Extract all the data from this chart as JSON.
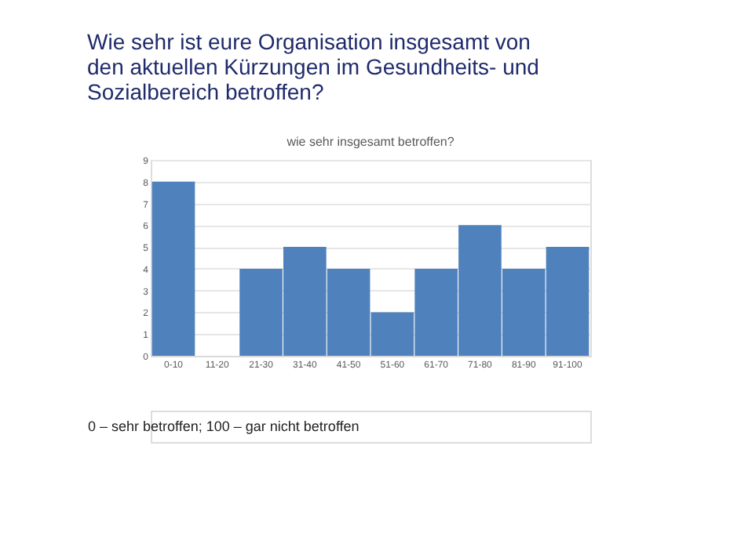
{
  "chart_data": {
    "type": "bar",
    "title": "Wie sehr ist eure Organisation insgesamt von den aktuellen Kürzungen im Gesundheits- und Sozialbereich betroffen?",
    "subtitle": "wie sehr insgesamt betroffen?",
    "categories": [
      "0-10",
      "11-20",
      "21-30",
      "31-40",
      "41-50",
      "51-60",
      "61-70",
      "71-80",
      "81-90",
      "91-100"
    ],
    "values": [
      8,
      0,
      4,
      5,
      4,
      2,
      4,
      6,
      4,
      5
    ],
    "color": "#4f81bd",
    "ylim": [
      0,
      9
    ],
    "yticks": [
      0,
      1,
      2,
      3,
      4,
      5,
      6,
      7,
      8,
      9
    ],
    "grid": "y",
    "annotations": [
      "0 – sehr betroffen; 100 – gar nicht betroffen"
    ]
  }
}
